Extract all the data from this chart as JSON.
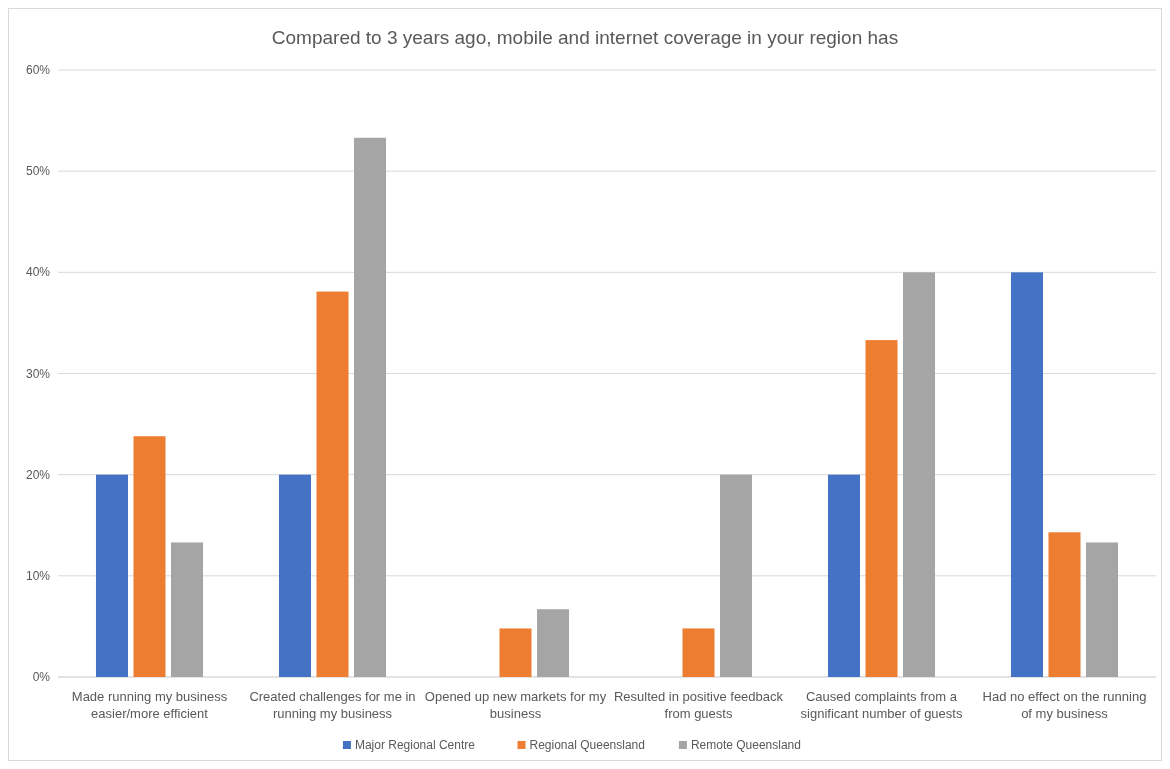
{
  "chart_data": {
    "type": "bar",
    "title": "Compared to 3 years ago,  mobile and internet coverage in your region has",
    "categories": [
      "Made running my business easier/more efficient",
      "Created challenges for me in running my business",
      "Opened up new markets for my business",
      "Resulted in positive feedback from guests",
      "Caused complaints from a significant number of guests",
      "Had no effect on the running of my business"
    ],
    "series": [
      {
        "name": "Major Regional Centre",
        "color": "#4472c4",
        "values": [
          20,
          20,
          0,
          0,
          20,
          40
        ]
      },
      {
        "name": "Regional Queensland",
        "color": "#ed7d31",
        "values": [
          23.8,
          38.1,
          4.8,
          4.8,
          33.3,
          14.3
        ]
      },
      {
        "name": "Remote Queensland",
        "color": "#a5a5a5",
        "values": [
          13.3,
          53.3,
          6.7,
          20,
          40,
          13.3
        ]
      }
    ],
    "ylim": [
      0,
      60
    ],
    "yticks": [
      {
        "value": 0,
        "label": "0%"
      },
      {
        "value": 10,
        "label": "10%"
      },
      {
        "value": 20,
        "label": "20%"
      },
      {
        "value": 30,
        "label": "30%"
      },
      {
        "value": 40,
        "label": "40%"
      },
      {
        "value": 50,
        "label": "50%"
      },
      {
        "value": 60,
        "label": "60%"
      }
    ],
    "grid": "y",
    "legend": "bottom"
  }
}
